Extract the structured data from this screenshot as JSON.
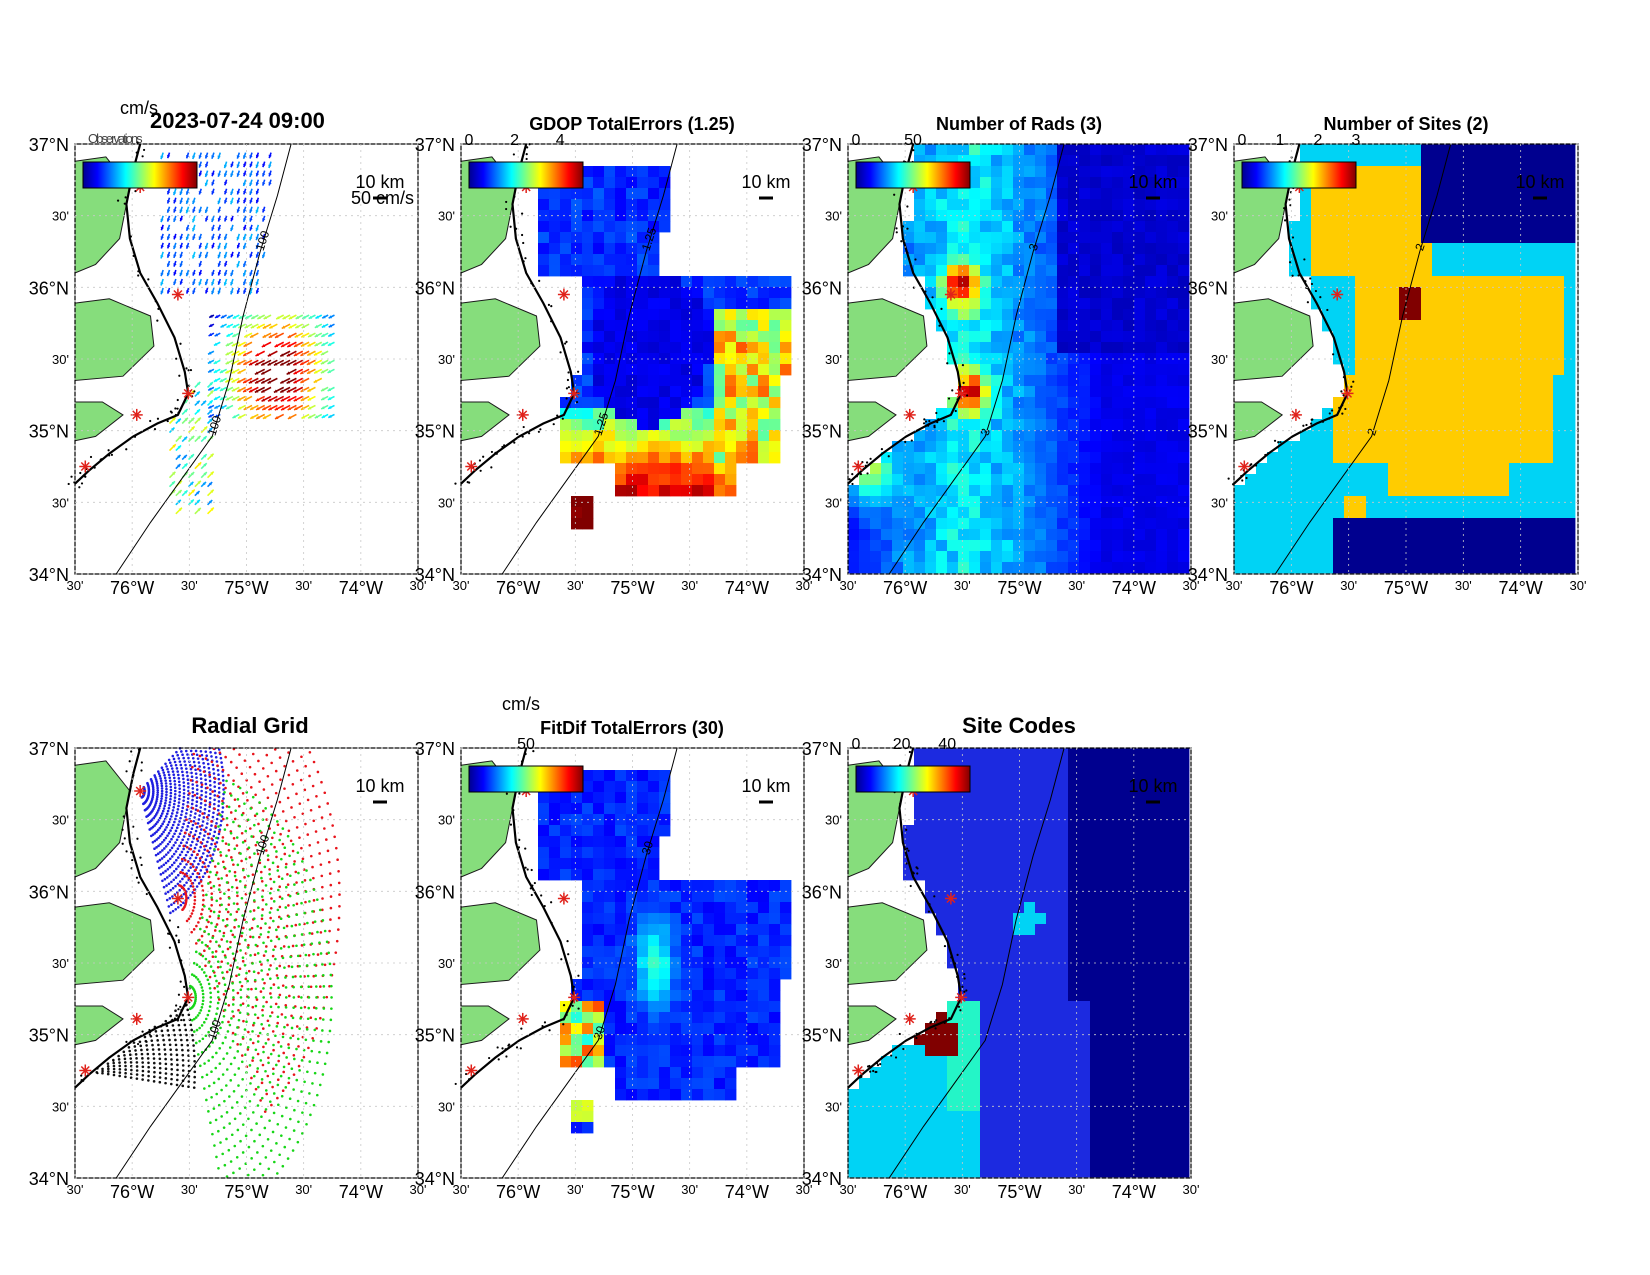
{
  "figure": {
    "timestamp": "2023-07-24 09:00",
    "legend_overlap_text": "Observations",
    "colors": {
      "land": "#86dd7c",
      "site_marker": "#e0221b",
      "coast": "#000000"
    }
  },
  "axes_labels": {
    "y": [
      "37°N",
      "30'",
      "36°N",
      "30'",
      "35°N",
      "30'",
      "34°N"
    ],
    "x": [
      "30'",
      "76°W",
      "30'",
      "75°W",
      "30'",
      "74°W",
      "30'"
    ]
  },
  "chart_data": [
    {
      "type": "heatmap",
      "title": "",
      "variant": "current-vectors",
      "colorbar": {
        "unit": "cm/s",
        "ticks": []
      },
      "scale_label": "10 km",
      "vector_scale_label": "50 cm/s",
      "contours": [
        "100",
        "100"
      ],
      "lat_range": [
        34,
        37
      ],
      "lon_range": [
        -76.5,
        -73.5
      ]
    },
    {
      "type": "heatmap",
      "title": "GDOP TotalErrors (1.25)",
      "variant": "gdop",
      "colorbar": {
        "unit": "",
        "ticks": [
          "0",
          "2",
          "4"
        ],
        "range": [
          0,
          5
        ]
      },
      "scale_label": "10 km",
      "contours": [
        "1.25",
        "1.25"
      ],
      "lat_range": [
        34,
        37
      ],
      "lon_range": [
        -76.5,
        -73.5
      ]
    },
    {
      "type": "heatmap",
      "title": "Number of Rads (3)",
      "variant": "rads",
      "colorbar": {
        "unit": "",
        "ticks": [
          "0",
          "50"
        ],
        "range": [
          0,
          100
        ]
      },
      "scale_label": "10 km",
      "contours": [
        "3",
        "3",
        "3"
      ],
      "lat_range": [
        34,
        37
      ],
      "lon_range": [
        -76.5,
        -73.5
      ]
    },
    {
      "type": "heatmap",
      "title": "Number of Sites (2)",
      "variant": "sites",
      "colorbar": {
        "unit": "",
        "ticks": [
          "0",
          "1",
          "2",
          "3"
        ],
        "range": [
          0,
          3
        ]
      },
      "scale_label": "10 km",
      "contours": [
        "2",
        "2",
        "2",
        "2",
        "2",
        "2",
        "2"
      ],
      "lat_range": [
        34,
        37
      ],
      "lon_range": [
        -76.5,
        -73.5
      ]
    },
    {
      "type": "scatter",
      "title": "Radial Grid",
      "variant": "radial-grid",
      "scale_label": "10 km",
      "contours": [
        "100",
        "100"
      ],
      "series_colors": [
        "#1f1fe0",
        "#e8141b",
        "#17d617",
        "#111111"
      ],
      "lat_range": [
        34,
        37
      ],
      "lon_range": [
        -76.5,
        -73.5
      ]
    },
    {
      "type": "heatmap",
      "title": "FitDif TotalErrors (30)",
      "variant": "fitdif",
      "colorbar": {
        "unit": "cm/s",
        "ticks": [
          "50"
        ],
        "range": [
          0,
          100
        ]
      },
      "scale_label": "10 km",
      "contours": [
        "30",
        "30",
        "30"
      ],
      "lat_range": [
        34,
        37
      ],
      "lon_range": [
        -76.5,
        -73.5
      ]
    },
    {
      "type": "heatmap",
      "title": "Site Codes",
      "variant": "site-codes",
      "colorbar": {
        "unit": "",
        "ticks": [
          "0",
          "20",
          "40"
        ],
        "range": [
          0,
          50
        ]
      },
      "scale_label": "10 km",
      "contours": [],
      "lat_range": [
        34,
        37
      ],
      "lon_range": [
        -76.5,
        -73.5
      ]
    }
  ]
}
